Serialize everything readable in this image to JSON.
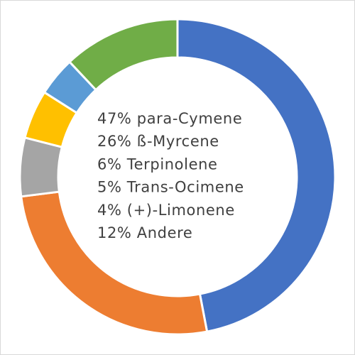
{
  "chart_data": {
    "type": "donut",
    "categories": [
      "para-Cymene",
      "ß-Myrcene",
      "Terpinolene",
      "Trans-Ocimene",
      "(+)-Limonene",
      "Andere"
    ],
    "values": [
      47,
      26,
      6,
      5,
      4,
      12
    ],
    "value_labels": [
      "47%",
      "26%",
      "6%",
      "5%",
      "4%",
      "12%"
    ],
    "colors": [
      "#4472c4",
      "#ed7d31",
      "#a5a5a5",
      "#ffc000",
      "#5b9bd5",
      "#70ad47"
    ]
  }
}
